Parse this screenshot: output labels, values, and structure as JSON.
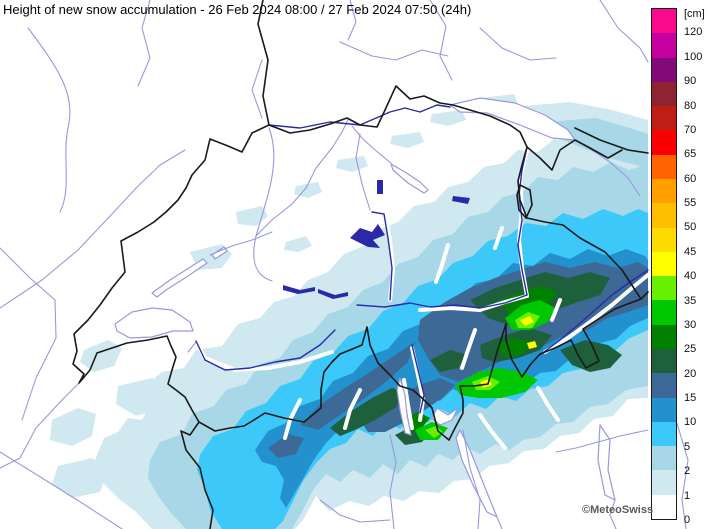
{
  "title": "Height of new snow accumulation - 26 Feb 2024 08:00 / 27 Feb 2024 07:50 (24h)",
  "copyright": "©MeteoSwiss",
  "legend": {
    "unit_label": "[cm]",
    "tick_labels": [
      "120",
      "100",
      "90",
      "80",
      "70",
      "65",
      "60",
      "55",
      "50",
      "45",
      "40",
      "35",
      "30",
      "25",
      "20",
      "15",
      "10",
      "5",
      "2",
      "1",
      "0"
    ],
    "bands": [
      {
        "min": "120",
        "color": "#FA0A8C"
      },
      {
        "min": "100",
        "color": "#C4009E"
      },
      {
        "min": "90",
        "color": "#820A78"
      },
      {
        "min": "80",
        "color": "#8F2332"
      },
      {
        "min": "70",
        "color": "#BE1E14"
      },
      {
        "min": "65",
        "color": "#FA0000"
      },
      {
        "min": "60",
        "color": "#FF6400"
      },
      {
        "min": "55",
        "color": "#FFA000"
      },
      {
        "min": "50",
        "color": "#FFBE00"
      },
      {
        "min": "45",
        "color": "#FFDC00"
      },
      {
        "min": "40",
        "color": "#FFFF00"
      },
      {
        "min": "35",
        "color": "#69F000"
      },
      {
        "min": "30",
        "color": "#00C800"
      },
      {
        "min": "25",
        "color": "#008200"
      },
      {
        "min": "20",
        "color": "#1E5F3C"
      },
      {
        "min": "15",
        "color": "#3C6996"
      },
      {
        "min": "10",
        "color": "#2391CD"
      },
      {
        "min": "5",
        "color": "#3CC8F8"
      },
      {
        "min": "2",
        "color": "#A8D8E8"
      },
      {
        "min": "1",
        "color": "#D0E8F0"
      },
      {
        "min": "0",
        "color": "#FFFFFF"
      }
    ]
  },
  "map_colors": {
    "background": "#FFFFFF",
    "river": "#9898DE",
    "major_river": "#2A2AA8",
    "lake_fill": "#FFFFFF",
    "border": "#1A1A1A",
    "valley": "#FFFFFF"
  },
  "chart_data": {
    "type": "heatmap",
    "title": "Height of new snow accumulation - 26 Feb 2024 08:00 / 27 Feb 2024 07:50 (24h)",
    "unit": "cm",
    "scale_thresholds": [
      0,
      1,
      2,
      5,
      10,
      15,
      20,
      25,
      30,
      35,
      40,
      45,
      50,
      55,
      60,
      65,
      70,
      80,
      90,
      100,
      120
    ],
    "scale_colors_low_to_high": [
      "#FFFFFF",
      "#D0E8F0",
      "#A8D8E8",
      "#3CC8F8",
      "#2391CD",
      "#3C6996",
      "#1E5F3C",
      "#008200",
      "#00C800",
      "#69F000",
      "#FFFF00",
      "#FFDC00",
      "#FFBE00",
      "#FFA000",
      "#FF6400",
      "#FA0000",
      "#BE1E14",
      "#8F2332",
      "#820A78",
      "#C4009E",
      "#FA0A8C"
    ],
    "legend_position": "right",
    "region": "Switzerland and surrounding Alps",
    "observed_values": "Snow band across the Alps: 1-20 cm widespread, 20-35 cm in Graubünden and southern valleys, local maxima of 40-50 cm (yellow spots) in the Engadine/Bernina region"
  }
}
